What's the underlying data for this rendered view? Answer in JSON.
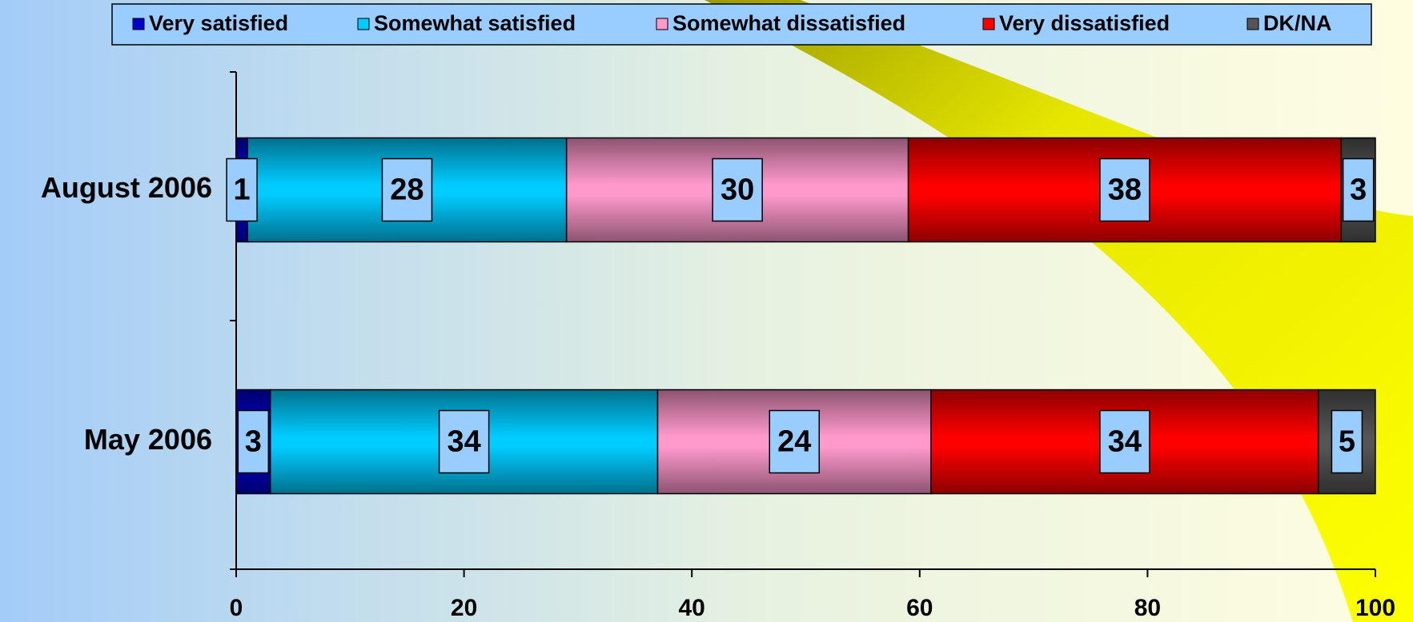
{
  "chart_data": {
    "type": "stacked-bar-horizontal",
    "categories": [
      "August 2006",
      "May 2006"
    ],
    "series": [
      {
        "name": "Very satisfied",
        "color": "#0000cc",
        "values": [
          1,
          3
        ]
      },
      {
        "name": "Somewhat satisfied",
        "color": "#00ccff",
        "values": [
          28,
          34
        ]
      },
      {
        "name": "Somewhat dissatisfied",
        "color": "#ff99cc",
        "values": [
          30,
          24
        ]
      },
      {
        "name": "Very dissatisfied",
        "color": "#ff0000",
        "values": [
          38,
          34
        ]
      },
      {
        "name": "DK/NA",
        "color": "#555555",
        "values": [
          3,
          5
        ]
      }
    ],
    "xlim": [
      0,
      100
    ],
    "xticks": [
      0,
      20,
      40,
      60,
      80,
      100
    ],
    "legend": "top"
  }
}
